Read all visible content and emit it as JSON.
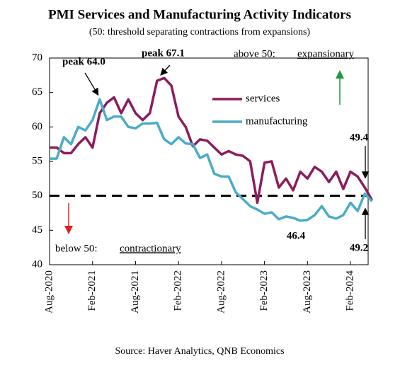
{
  "chart_data": {
    "type": "line",
    "title": "PMI Services and Manufacturing Activity Indicators",
    "subtitle": "(50: threshold separating contractions from expansions)",
    "source": "Source: Haver Analytics, QNB Economics",
    "categories": [
      "Aug-2020",
      null,
      null,
      null,
      null,
      null,
      "Feb-2021",
      null,
      null,
      null,
      null,
      null,
      "Aug-2021",
      null,
      null,
      null,
      null,
      null,
      "Feb-2022",
      null,
      null,
      null,
      null,
      null,
      "Aug-2022",
      null,
      null,
      null,
      null,
      null,
      "Feb-2023",
      null,
      null,
      null,
      null,
      null,
      "Aug-2023",
      null,
      null,
      null,
      null,
      null,
      "Feb-2024",
      null,
      null,
      null
    ],
    "series": [
      {
        "name": "services",
        "color": "#8c1c5c",
        "values": [
          57,
          57,
          56.2,
          56.2,
          57.5,
          58.5,
          57,
          62,
          63.5,
          64.3,
          62,
          64,
          62,
          61,
          62,
          66.7,
          67.1,
          66,
          61.5,
          60,
          57.2,
          58.2,
          58,
          57,
          56,
          56.5,
          56,
          55.8,
          55,
          49,
          54.8,
          55,
          51.2,
          52.5,
          50.8,
          53.5,
          52.5,
          54.2,
          53.5,
          52,
          53.5,
          51,
          53.5,
          52.8,
          51.2,
          49.4
        ]
      },
      {
        "name": "manufacturing",
        "color": "#4bacc6",
        "values": [
          55.4,
          55.4,
          58.5,
          57.5,
          60,
          59.5,
          61,
          64,
          61,
          61.5,
          61.5,
          60,
          59.8,
          60.5,
          60.5,
          60.6,
          58.2,
          57.5,
          58.5,
          57.6,
          57.5,
          55.5,
          56,
          53.2,
          52.8,
          52.8,
          50.5,
          49.5,
          48.5,
          48,
          47.4,
          47.6,
          46.6,
          47,
          46.8,
          46.4,
          46.5,
          47.2,
          48.5,
          47,
          46.7,
          47.2,
          49,
          47.8,
          50.3,
          49.2
        ]
      }
    ],
    "threshold": 50,
    "ylim": [
      40,
      70
    ],
    "yticks": [
      40,
      45,
      50,
      55,
      60,
      65,
      70
    ],
    "annotations": [
      "peak 64.0",
      "peak 67.1",
      "above 50:",
      "expansionary",
      "below 50:",
      "contractionary",
      "46.4",
      "49.4",
      "49.2"
    ]
  }
}
